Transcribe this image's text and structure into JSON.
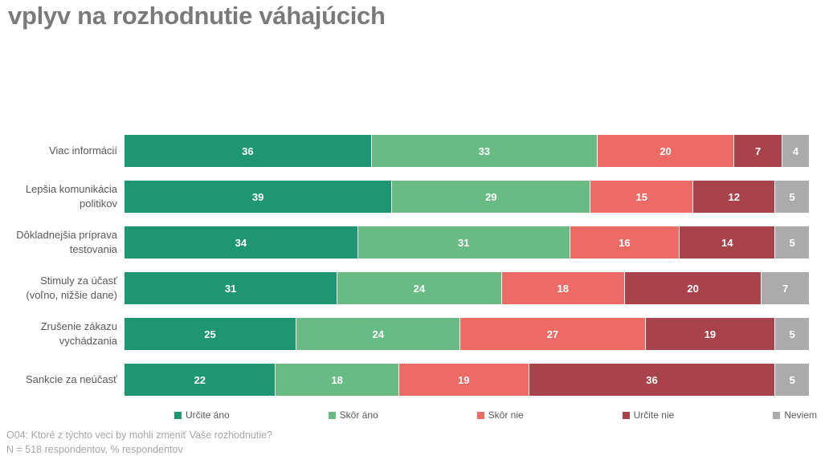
{
  "title": "vplyv na rozhodnutie váhajúcich",
  "footer": {
    "line1": "O04: Ktoré z týchto veci by mohli zmeniť Vaše rozhodnutie?",
    "line2": "N = 518 respondentov, % respondentov"
  },
  "chart_data": {
    "type": "bar",
    "orientation": "horizontal-stacked",
    "title": "vplyv na rozhodnutie váhajúcich",
    "categories": [
      "Viac informácií",
      "Lepšia komunikácia\npolitikov",
      "Dôkladnejšia príprava\ntestovania",
      "Stimuly za účasť\n(voľno, nižšie dane)",
      "Zrušenie zákazu\nvychádzania",
      "Sankcie za neúčasť"
    ],
    "series": [
      {
        "name": "Určite áno",
        "color": "#1f9672",
        "values": [
          36,
          39,
          34,
          31,
          25,
          22
        ]
      },
      {
        "name": "Skôr áno",
        "color": "#68bb82",
        "values": [
          33,
          29,
          31,
          24,
          24,
          18
        ]
      },
      {
        "name": "Skôr nie",
        "color": "#ec6b64",
        "values": [
          20,
          15,
          16,
          18,
          27,
          19
        ]
      },
      {
        "name": "Určite nie",
        "color": "#a9434b",
        "values": [
          7,
          12,
          14,
          20,
          19,
          36
        ]
      },
      {
        "name": "Neviem",
        "color": "#ababab",
        "values": [
          4,
          5,
          5,
          7,
          5,
          5
        ]
      }
    ],
    "xlim": [
      0,
      100
    ],
    "units": "% respondentov",
    "value_labels": "inside, white, bold",
    "legend_position": "bottom",
    "grid": false
  }
}
